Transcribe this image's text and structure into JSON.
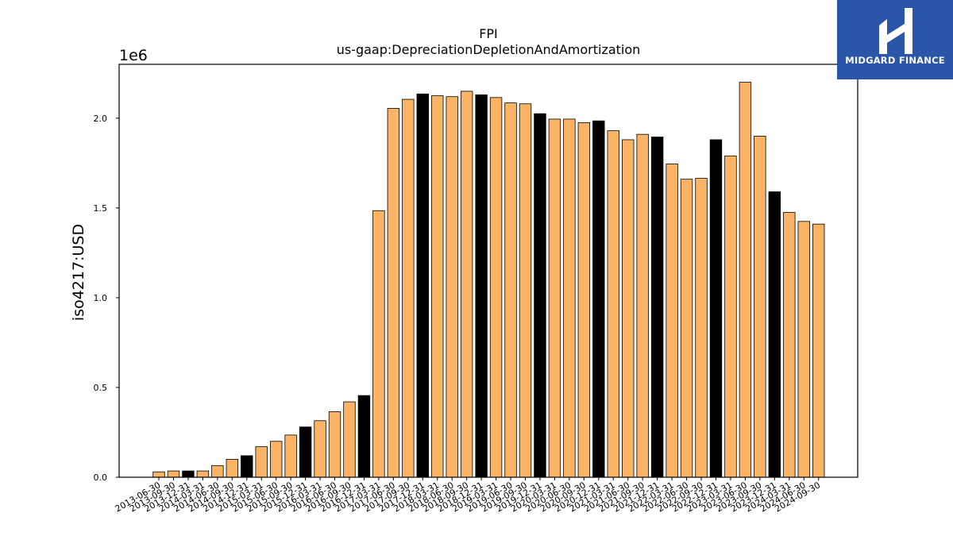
{
  "chart_data": {
    "type": "bar",
    "title": "FPI",
    "subtitle": "us-gaap:DepreciationDepletionAndAmortization",
    "ylabel": "iso4217:USD",
    "xlabel": "",
    "y_scale_label": "1e6",
    "ylim": [
      0,
      2.3
    ],
    "yticks": [
      "0.0",
      "0.5",
      "1.0",
      "1.5",
      "2.0"
    ],
    "categories": [
      "2013-06-30",
      "2013-09-30",
      "2013-12-31",
      "2014-03-31",
      "2014-06-30",
      "2014-09-30",
      "2014-12-31",
      "2015-03-31",
      "2015-06-30",
      "2015-09-30",
      "2015-12-31",
      "2016-03-31",
      "2016-06-30",
      "2016-09-30",
      "2016-12-31",
      "2017-03-31",
      "2017-06-30",
      "2017-09-30",
      "2017-12-31",
      "2018-03-31",
      "2018-06-30",
      "2018-09-30",
      "2018-12-31",
      "2019-03-31",
      "2019-06-30",
      "2019-09-30",
      "2019-12-31",
      "2020-03-31",
      "2020-06-30",
      "2020-09-30",
      "2020-12-31",
      "2021-03-31",
      "2021-06-30",
      "2021-09-30",
      "2021-12-31",
      "2022-03-31",
      "2022-06-30",
      "2022-09-30",
      "2022-12-31",
      "2023-03-31",
      "2023-06-30",
      "2023-09-30",
      "2023-12-31",
      "2024-03-31",
      "2024-06-30",
      "2024-09-30"
    ],
    "values": [
      0.03,
      0.035,
      0.035,
      0.035,
      0.065,
      0.1,
      0.12,
      0.17,
      0.2,
      0.235,
      0.28,
      0.315,
      0.365,
      0.42,
      0.455,
      1.485,
      2.055,
      2.105,
      2.135,
      2.125,
      2.12,
      2.15,
      2.13,
      2.115,
      2.085,
      2.08,
      2.025,
      1.995,
      1.995,
      1.975,
      1.985,
      1.93,
      1.88,
      1.91,
      1.895,
      1.745,
      1.66,
      1.665,
      1.88,
      1.79,
      2.2,
      1.9,
      1.59,
      1.475,
      1.425,
      1.41
    ],
    "highlight_color": "#000000",
    "bar_color": "#fbb465",
    "highlighted_categories": [
      "2013-12-31",
      "2014-12-31",
      "2015-12-31",
      "2016-12-31",
      "2017-12-31",
      "2018-12-31",
      "2019-12-31",
      "2020-12-31",
      "2021-12-31",
      "2022-12-31",
      "2023-12-31"
    ],
    "grid": false,
    "legend": "none"
  },
  "logo": {
    "text": "MIDGARD FINANCE",
    "background": "#2a55a8",
    "icon": "midgard-logo-icon"
  }
}
